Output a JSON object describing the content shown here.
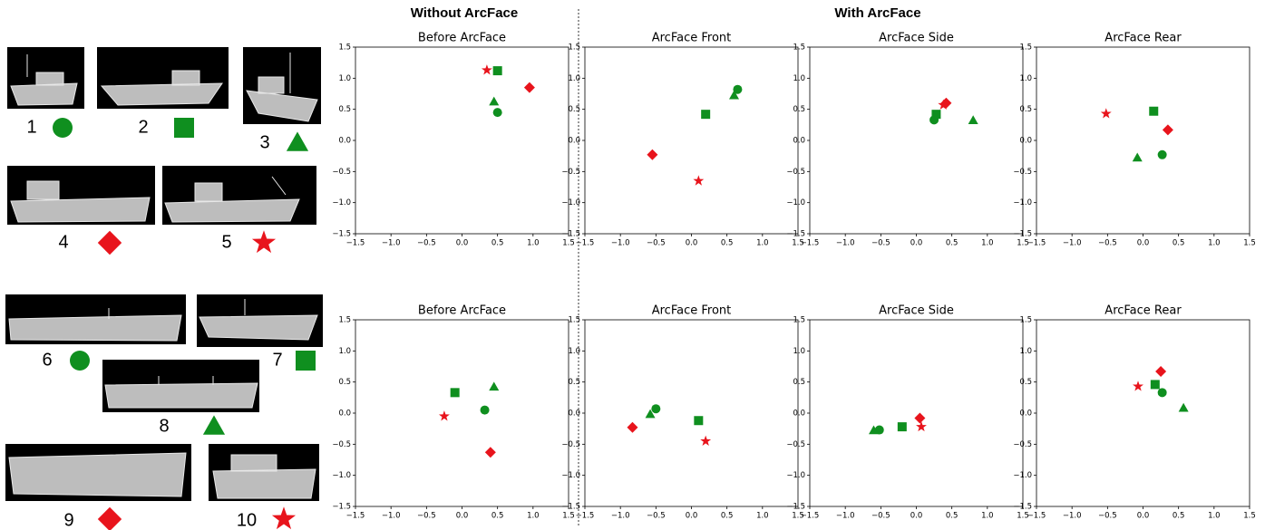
{
  "headers": [
    "Without ArcFace",
    "With ArcFace"
  ],
  "samples": [
    {
      "label": "1",
      "marker": "circle",
      "color": "#0f8f1f"
    },
    {
      "label": "2",
      "marker": "square",
      "color": "#0f8f1f"
    },
    {
      "label": "3",
      "marker": "triangle",
      "color": "#0f8f1f"
    },
    {
      "label": "4",
      "marker": "diamond",
      "color": "#e8141c"
    },
    {
      "label": "5",
      "marker": "star",
      "color": "#e8141c"
    },
    {
      "label": "6",
      "marker": "circle",
      "color": "#0f8f1f"
    },
    {
      "label": "7",
      "marker": "square",
      "color": "#0f8f1f"
    },
    {
      "label": "8",
      "marker": "triangle",
      "color": "#0f8f1f"
    },
    {
      "label": "9",
      "marker": "diamond",
      "color": "#e8141c"
    },
    {
      "label": "10",
      "marker": "star",
      "color": "#e8141c"
    }
  ],
  "chart_data": [
    {
      "type": "scatter",
      "title": "Before ArcFace",
      "x": [
        0.5,
        0.5,
        0.45,
        0.95,
        0.35
      ],
      "values": [
        0.45,
        1.12,
        0.62,
        0.85,
        1.13
      ],
      "markers": [
        "circle",
        "square",
        "triangle",
        "diamond",
        "star"
      ],
      "colors": [
        "#0f8f1f",
        "#0f8f1f",
        "#0f8f1f",
        "#e8141c",
        "#e8141c"
      ],
      "xlim": [
        -1.5,
        1.5
      ],
      "ylim": [
        -1.5,
        1.5
      ],
      "xticks": [
        {
          "value": -1.5,
          "label": "−1.5"
        },
        {
          "value": -1,
          "label": "−1.0"
        },
        {
          "value": -0.5,
          "label": "−0.5"
        },
        {
          "value": 0,
          "label": "0.0"
        },
        0.5,
        {
          "value": 1,
          "label": "1.0"
        },
        1.5
      ],
      "yticks": [
        {
          "value": -1.5,
          "label": "−1.5"
        },
        {
          "value": -1,
          "label": "−1.0"
        },
        {
          "value": -0.5,
          "label": "−0.5"
        },
        {
          "value": 0,
          "label": "0.0"
        },
        0.5,
        {
          "value": 1,
          "label": "1.0"
        },
        1.5
      ]
    },
    {
      "type": "scatter",
      "title": "ArcFace Front",
      "x": [
        0.65,
        0.2,
        0.6,
        -0.55,
        0.1
      ],
      "values": [
        0.82,
        0.42,
        0.72,
        -0.23,
        -0.65
      ],
      "markers": [
        "circle",
        "square",
        "triangle",
        "diamond",
        "star"
      ],
      "colors": [
        "#0f8f1f",
        "#0f8f1f",
        "#0f8f1f",
        "#e8141c",
        "#e8141c"
      ],
      "xlim": [
        -1.5,
        1.5
      ],
      "ylim": [
        -1.5,
        1.5
      ],
      "xticks": [
        {
          "value": -1.5,
          "label": "−1.5"
        },
        {
          "value": -1,
          "label": "−1.0"
        },
        {
          "value": -0.5,
          "label": "−0.5"
        },
        {
          "value": 0,
          "label": "0.0"
        },
        0.5,
        {
          "value": 1,
          "label": "1.0"
        },
        1.5
      ],
      "yticks": [
        {
          "value": -1.5,
          "label": "−1.5"
        },
        {
          "value": -1,
          "label": "−1.0"
        },
        {
          "value": -0.5,
          "label": "−0.5"
        },
        {
          "value": 0,
          "label": "0.0"
        },
        0.5,
        {
          "value": 1,
          "label": "1.0"
        },
        1.5
      ]
    },
    {
      "type": "scatter",
      "title": "ArcFace Side",
      "x": [
        0.25,
        0.28,
        0.8,
        0.42,
        0.38
      ],
      "values": [
        0.33,
        0.42,
        0.32,
        0.6,
        0.57
      ],
      "markers": [
        "circle",
        "square",
        "triangle",
        "diamond",
        "star"
      ],
      "colors": [
        "#0f8f1f",
        "#0f8f1f",
        "#0f8f1f",
        "#e8141c",
        "#e8141c"
      ],
      "xlim": [
        -1.5,
        1.5
      ],
      "ylim": [
        -1.5,
        1.5
      ],
      "xticks": [
        {
          "value": -1.5,
          "label": "−1.5"
        },
        {
          "value": -1,
          "label": "−1.0"
        },
        {
          "value": -0.5,
          "label": "−0.5"
        },
        {
          "value": 0,
          "label": "0.0"
        },
        0.5,
        {
          "value": 1,
          "label": "1.0"
        },
        1.5
      ],
      "yticks": [
        {
          "value": -1.5,
          "label": "−1.5"
        },
        {
          "value": -1,
          "label": "−1.0"
        },
        {
          "value": -0.5,
          "label": "−0.5"
        },
        {
          "value": 0,
          "label": "0.0"
        },
        0.5,
        {
          "value": 1,
          "label": "1.0"
        },
        1.5
      ]
    },
    {
      "type": "scatter",
      "title": "ArcFace Rear",
      "x": [
        0.27,
        0.15,
        -0.08,
        0.35,
        -0.52
      ],
      "values": [
        -0.23,
        0.47,
        -0.28,
        0.17,
        0.43
      ],
      "markers": [
        "circle",
        "square",
        "triangle",
        "diamond",
        "star"
      ],
      "colors": [
        "#0f8f1f",
        "#0f8f1f",
        "#0f8f1f",
        "#e8141c",
        "#e8141c"
      ],
      "xlim": [
        -1.5,
        1.5
      ],
      "ylim": [
        -1.5,
        1.5
      ],
      "xticks": [
        {
          "value": -1.5,
          "label": "−1.5"
        },
        {
          "value": -1,
          "label": "−1.0"
        },
        {
          "value": -0.5,
          "label": "−0.5"
        },
        {
          "value": 0,
          "label": "0.0"
        },
        0.5,
        {
          "value": 1,
          "label": "1.0"
        },
        1.5
      ],
      "yticks": [
        {
          "value": -1.5,
          "label": "−1.5"
        },
        {
          "value": -1,
          "label": "−1.0"
        },
        {
          "value": -0.5,
          "label": "−0.5"
        },
        {
          "value": 0,
          "label": "0.0"
        },
        0.5,
        {
          "value": 1,
          "label": "1.0"
        },
        1.5
      ]
    },
    {
      "type": "scatter",
      "title": "Before ArcFace",
      "x": [
        0.32,
        -0.1,
        0.45,
        0.4,
        -0.25
      ],
      "values": [
        0.05,
        0.33,
        0.42,
        -0.63,
        -0.05
      ],
      "markers": [
        "circle",
        "square",
        "triangle",
        "diamond",
        "star"
      ],
      "colors": [
        "#0f8f1f",
        "#0f8f1f",
        "#0f8f1f",
        "#e8141c",
        "#e8141c"
      ],
      "xlim": [
        -1.5,
        1.5
      ],
      "ylim": [
        -1.5,
        1.5
      ],
      "xticks": [
        {
          "value": -1.5,
          "label": "−1.5"
        },
        {
          "value": -1,
          "label": "−1.0"
        },
        {
          "value": -0.5,
          "label": "−0.5"
        },
        {
          "value": 0,
          "label": "0.0"
        },
        0.5,
        {
          "value": 1,
          "label": "1.0"
        },
        1.5
      ],
      "yticks": [
        {
          "value": -1.5,
          "label": "−1.5"
        },
        {
          "value": -1,
          "label": "−1.0"
        },
        {
          "value": -0.5,
          "label": "−0.5"
        },
        {
          "value": 0,
          "label": "0.0"
        },
        0.5,
        {
          "value": 1,
          "label": "1.0"
        },
        1.5
      ]
    },
    {
      "type": "scatter",
      "title": "ArcFace Front",
      "x": [
        -0.5,
        0.1,
        -0.58,
        -0.83,
        0.2
      ],
      "values": [
        0.07,
        -0.12,
        -0.02,
        -0.23,
        -0.45
      ],
      "markers": [
        "circle",
        "square",
        "triangle",
        "diamond",
        "star"
      ],
      "colors": [
        "#0f8f1f",
        "#0f8f1f",
        "#0f8f1f",
        "#e8141c",
        "#e8141c"
      ],
      "xlim": [
        -1.5,
        1.5
      ],
      "ylim": [
        -1.5,
        1.5
      ],
      "xticks": [
        {
          "value": -1.5,
          "label": "−1.5"
        },
        {
          "value": -1,
          "label": "−1.0"
        },
        {
          "value": -0.5,
          "label": "−0.5"
        },
        {
          "value": 0,
          "label": "0.0"
        },
        0.5,
        {
          "value": 1,
          "label": "1.0"
        },
        1.5
      ],
      "yticks": [
        {
          "value": -1.5,
          "label": "−1.5"
        },
        {
          "value": -1,
          "label": "−1.0"
        },
        {
          "value": -0.5,
          "label": "−0.5"
        },
        {
          "value": 0,
          "label": "0.0"
        },
        0.5,
        {
          "value": 1,
          "label": "1.0"
        },
        1.5
      ]
    },
    {
      "type": "scatter",
      "title": "ArcFace Side",
      "x": [
        -0.52,
        -0.2,
        -0.6,
        0.05,
        0.07
      ],
      "values": [
        -0.27,
        -0.22,
        -0.28,
        -0.08,
        -0.22
      ],
      "markers": [
        "circle",
        "square",
        "triangle",
        "diamond",
        "star"
      ],
      "colors": [
        "#0f8f1f",
        "#0f8f1f",
        "#0f8f1f",
        "#e8141c",
        "#e8141c"
      ],
      "xlim": [
        -1.5,
        1.5
      ],
      "ylim": [
        -1.5,
        1.5
      ],
      "xticks": [
        {
          "value": -1.5,
          "label": "−1.5"
        },
        {
          "value": -1,
          "label": "−1.0"
        },
        {
          "value": -0.5,
          "label": "−0.5"
        },
        {
          "value": 0,
          "label": "0.0"
        },
        0.5,
        {
          "value": 1,
          "label": "1.0"
        },
        1.5
      ],
      "yticks": [
        {
          "value": -1.5,
          "label": "−1.5"
        },
        {
          "value": -1,
          "label": "−1.0"
        },
        {
          "value": -0.5,
          "label": "−0.5"
        },
        {
          "value": 0,
          "label": "0.0"
        },
        0.5,
        {
          "value": 1,
          "label": "1.0"
        },
        1.5
      ]
    },
    {
      "type": "scatter",
      "title": "ArcFace Rear",
      "x": [
        0.27,
        0.17,
        0.57,
        0.25,
        -0.07
      ],
      "values": [
        0.33,
        0.46,
        0.08,
        0.67,
        0.43
      ],
      "markers": [
        "circle",
        "square",
        "triangle",
        "diamond",
        "star"
      ],
      "colors": [
        "#0f8f1f",
        "#0f8f1f",
        "#0f8f1f",
        "#e8141c",
        "#e8141c"
      ],
      "xlim": [
        -1.5,
        1.5
      ],
      "ylim": [
        -1.5,
        1.5
      ],
      "xticks": [
        {
          "value": -1.5,
          "label": "−1.5"
        },
        {
          "value": -1,
          "label": "−1.0"
        },
        {
          "value": -0.5,
          "label": "−0.5"
        },
        {
          "value": 0,
          "label": "0.0"
        },
        0.5,
        {
          "value": 1,
          "label": "1.0"
        },
        1.5
      ],
      "yticks": [
        {
          "value": -1.5,
          "label": "−1.5"
        },
        {
          "value": -1,
          "label": "−1.0"
        },
        {
          "value": -0.5,
          "label": "−0.5"
        },
        {
          "value": 0,
          "label": "0.0"
        },
        0.5,
        {
          "value": 1,
          "label": "1.0"
        },
        1.5
      ]
    }
  ]
}
